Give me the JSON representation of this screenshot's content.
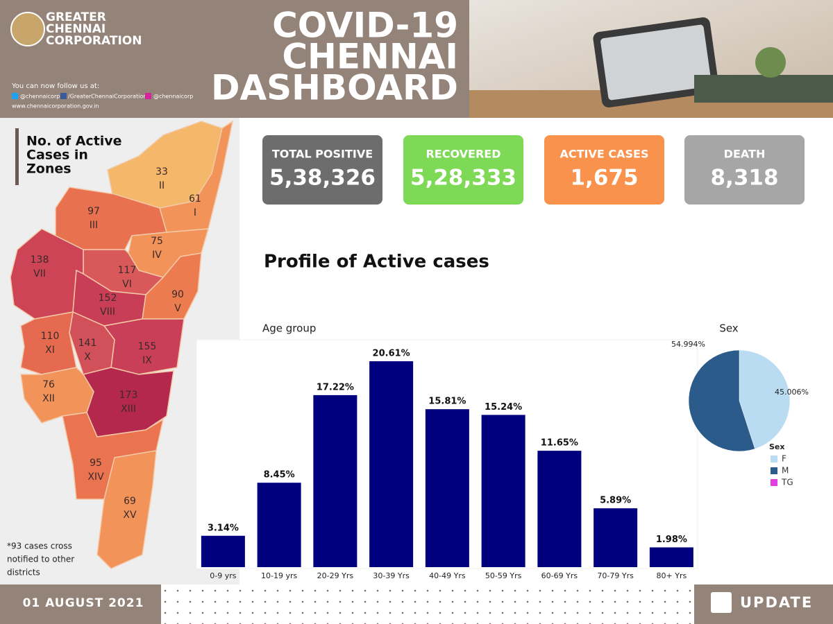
{
  "header": {
    "org": [
      "GREATER",
      "CHENNAI",
      "CORPORATION"
    ],
    "follow": "You can now follow us at:",
    "twitter": "@chennaicorp",
    "facebook": "/GreaterChennaiCorporation",
    "instagram": "@chennaicorp",
    "website": "www.chennaicorporation.gov.in",
    "title": [
      "COVID-19",
      "CHENNAI",
      "DASHBOARD"
    ]
  },
  "cards": [
    {
      "label": "TOTAL POSITIVE",
      "value": "5,38,326",
      "color": "#6d6d6d"
    },
    {
      "label": "RECOVERED",
      "value": "5,28,333",
      "color": "#7ed957"
    },
    {
      "label": "ACTIVE CASES",
      "value": "1,675",
      "color": "#f8924c"
    },
    {
      "label": "DEATH",
      "value": "8,318",
      "color": "#a6a6a6"
    }
  ],
  "map": {
    "title": [
      "No. of Active",
      "Cases in",
      "Zones"
    ],
    "zones": [
      {
        "count": 61,
        "label": "I",
        "color": "#f2935a"
      },
      {
        "count": 33,
        "label": "II",
        "color": "#f5b769"
      },
      {
        "count": 97,
        "label": "III",
        "color": "#e8724f"
      },
      {
        "count": 75,
        "label": "IV",
        "color": "#f2935a"
      },
      {
        "count": 90,
        "label": "V",
        "color": "#ec7b50"
      },
      {
        "count": 117,
        "label": "VI",
        "color": "#d9585a"
      },
      {
        "count": 138,
        "label": "VII",
        "color": "#cc4455"
      },
      {
        "count": 152,
        "label": "VIII",
        "color": "#c83e56"
      },
      {
        "count": 155,
        "label": "IX",
        "color": "#c93f57"
      },
      {
        "count": 141,
        "label": "X",
        "color": "#d1505a"
      },
      {
        "count": 110,
        "label": "XI",
        "color": "#e56a50"
      },
      {
        "count": 76,
        "label": "XII",
        "color": "#f2935a"
      },
      {
        "count": 173,
        "label": "XIII",
        "color": "#b5284d"
      },
      {
        "count": 95,
        "label": "XIV",
        "color": "#ea7450"
      },
      {
        "count": 69,
        "label": "XV",
        "color": "#f2935a"
      }
    ],
    "note": [
      "*93  cases cross",
      "notified to other",
      "districts"
    ]
  },
  "section_title": "Profile of Active cases",
  "chart_data": [
    {
      "type": "bar",
      "title": "Age group",
      "categories": [
        "0-9 yrs",
        "10-19 yrs",
        "20-29 Yrs",
        "30-39 Yrs",
        "40-49 Yrs",
        "50-59 Yrs",
        "60-69 Yrs",
        "70-79 Yrs",
        "80+ Yrs"
      ],
      "values": [
        3.14,
        8.45,
        17.22,
        20.61,
        15.81,
        15.24,
        11.65,
        5.89,
        1.98
      ],
      "value_labels": [
        "3.14%",
        "8.45%",
        "17.22%",
        "20.61%",
        "15.81%",
        "15.24%",
        "11.65%",
        "5.89%",
        "1.98%"
      ],
      "color": "#00007f",
      "ylim": [
        0,
        22
      ],
      "grid": false
    },
    {
      "type": "pie",
      "title": "Sex",
      "legend_title": "Sex",
      "categories": [
        "F",
        "M",
        "TG"
      ],
      "values": [
        45.006,
        54.994,
        0
      ],
      "value_labels": [
        "45.006%",
        "54.994%",
        null
      ],
      "colors": [
        "#b9dcf2",
        "#2b5b8a",
        "#e040e0"
      ],
      "legend": "bottom-right"
    }
  ],
  "footer": {
    "date": "01 AUGUST 2021",
    "update": "UPDATE"
  }
}
